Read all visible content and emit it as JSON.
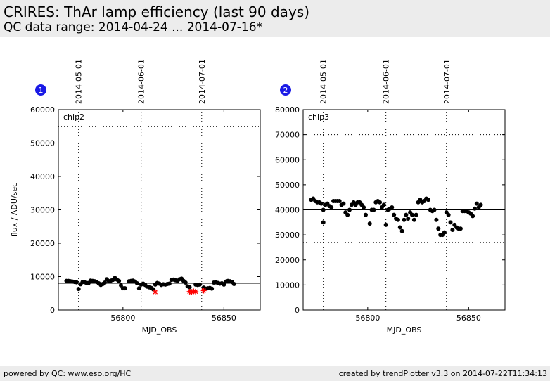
{
  "header": {
    "title": "CRIRES: ThAr lamp efficiency (last 90 days)",
    "subtitle": "QC data range: 2014-04-24 ... 2014-07-16*"
  },
  "footer": {
    "left": "powered by QC: www.eso.org/HC",
    "right": "created by trendPlotter v3.3 on 2014-07-22T11:34:13"
  },
  "chart_data": [
    {
      "type": "scatter",
      "badge": "1",
      "panel_label": "chip2",
      "xlabel": "MJD_OBS",
      "ylabel": "flux / ADU/sec",
      "xlim": [
        56768,
        56868
      ],
      "ylim": [
        0,
        60000
      ],
      "xticks": [
        56800,
        56850
      ],
      "yticks": [
        0,
        10000,
        20000,
        30000,
        40000,
        50000,
        60000
      ],
      "date_markers": [
        {
          "mjd": 56778,
          "label": "2014-05-01"
        },
        {
          "mjd": 56809,
          "label": "2014-06-01"
        },
        {
          "mjd": 56839,
          "label": "2014-07-01"
        }
      ],
      "reference_line": 8000,
      "limit_lines": [
        6000,
        55000
      ],
      "series": [
        {
          "marker": "dot",
          "color": "#000000",
          "x": [
            56772,
            56773,
            56774,
            56775,
            56776,
            56777,
            56778,
            56779,
            56780,
            56781,
            56782,
            56783,
            56784,
            56785,
            56786,
            56787,
            56788,
            56789,
            56790,
            56791,
            56792,
            56793,
            56794,
            56795,
            56796,
            56797,
            56798,
            56799,
            56800,
            56801,
            56803,
            56804,
            56805,
            56806,
            56807,
            56808,
            56809,
            56810,
            56811,
            56812,
            56813,
            56814,
            56815,
            56816,
            56817,
            56818,
            56819,
            56820,
            56821,
            56822,
            56823,
            56824,
            56825,
            56826,
            56827,
            56828,
            56829,
            56830,
            56831,
            56832,
            56833,
            56836,
            56837,
            56838,
            56840,
            56841,
            56842,
            56843,
            56844,
            56845,
            56846,
            56847,
            56848,
            56849,
            56850,
            56851,
            56852,
            56853,
            56854,
            56855
          ],
          "y": [
            8700,
            8700,
            8600,
            8500,
            8400,
            8300,
            6300,
            7700,
            8400,
            8300,
            8100,
            8100,
            8800,
            8700,
            8600,
            8400,
            8000,
            7500,
            7800,
            8200,
            9200,
            8600,
            8800,
            9000,
            9600,
            9100,
            8700,
            7400,
            6500,
            6500,
            8600,
            8700,
            8800,
            8500,
            8000,
            6500,
            7600,
            7900,
            7500,
            7000,
            6800,
            6600,
            6200,
            7600,
            8100,
            7900,
            7500,
            7700,
            7600,
            7800,
            7900,
            9000,
            9100,
            8900,
            8700,
            9200,
            9400,
            8700,
            8200,
            7100,
            6800,
            7600,
            7500,
            7600,
            6700,
            6400,
            6500,
            6600,
            6400,
            8200,
            8300,
            8100,
            7900,
            8000,
            7600,
            8500,
            8700,
            8600,
            8400,
            7800
          ]
        },
        {
          "marker": "star",
          "color": "#ff0000",
          "x": [
            56816,
            56833,
            56834,
            56835,
            56836,
            56840
          ],
          "y": [
            5400,
            5500,
            5400,
            5600,
            5500,
            5800
          ]
        }
      ]
    },
    {
      "type": "scatter",
      "badge": "2",
      "panel_label": "chip3",
      "xlabel": "MJD_OBS",
      "ylabel": "",
      "xlim": [
        56768,
        56868
      ],
      "ylim": [
        0,
        80000
      ],
      "xticks": [
        56800,
        56850
      ],
      "yticks": [
        0,
        10000,
        20000,
        30000,
        40000,
        50000,
        60000,
        70000,
        80000
      ],
      "date_markers": [
        {
          "mjd": 56778,
          "label": "2014-05-01"
        },
        {
          "mjd": 56809,
          "label": "2014-06-01"
        },
        {
          "mjd": 56839,
          "label": "2014-07-01"
        }
      ],
      "reference_line": 40000,
      "limit_lines": [
        27000,
        70000
      ],
      "series": [
        {
          "marker": "dot",
          "color": "#000000",
          "x": [
            56772,
            56773,
            56774,
            56775,
            56776,
            56777,
            56778,
            56778,
            56779,
            56780,
            56781,
            56782,
            56783,
            56784,
            56785,
            56786,
            56787,
            56788,
            56789,
            56790,
            56791,
            56792,
            56793,
            56794,
            56795,
            56796,
            56797,
            56798,
            56799,
            56801,
            56802,
            56803,
            56804,
            56805,
            56806,
            56807,
            56808,
            56809,
            56810,
            56811,
            56812,
            56813,
            56814,
            56815,
            56816,
            56817,
            56818,
            56819,
            56820,
            56821,
            56822,
            56823,
            56824,
            56825,
            56826,
            56827,
            56828,
            56829,
            56830,
            56831,
            56832,
            56833,
            56834,
            56835,
            56836,
            56837,
            56838,
            56839,
            56840,
            56841,
            56842,
            56843,
            56844,
            56845,
            56846,
            56847,
            56848,
            56849,
            56850,
            56851,
            56852,
            56853,
            56854,
            56855,
            56856
          ],
          "y": [
            44000,
            44500,
            43500,
            43000,
            43000,
            42500,
            35000,
            40000,
            42000,
            42500,
            41500,
            41000,
            43500,
            43500,
            43500,
            43500,
            42000,
            42500,
            39000,
            38000,
            40000,
            42000,
            43000,
            42000,
            43000,
            43000,
            42000,
            41000,
            38000,
            34500,
            40000,
            40000,
            43000,
            43500,
            43000,
            41000,
            42000,
            34000,
            40000,
            40500,
            41000,
            38000,
            36500,
            36000,
            33000,
            31500,
            36000,
            38000,
            36500,
            39000,
            38000,
            36000,
            38000,
            43000,
            44000,
            43000,
            43500,
            44500,
            44000,
            40000,
            39500,
            40000,
            36000,
            32500,
            30000,
            30000,
            31000,
            39000,
            38000,
            35000,
            32000,
            34000,
            33000,
            32500,
            32500,
            39500,
            39500,
            39500,
            39000,
            38500,
            37500,
            40500,
            42500,
            41000,
            42000
          ]
        }
      ]
    }
  ]
}
